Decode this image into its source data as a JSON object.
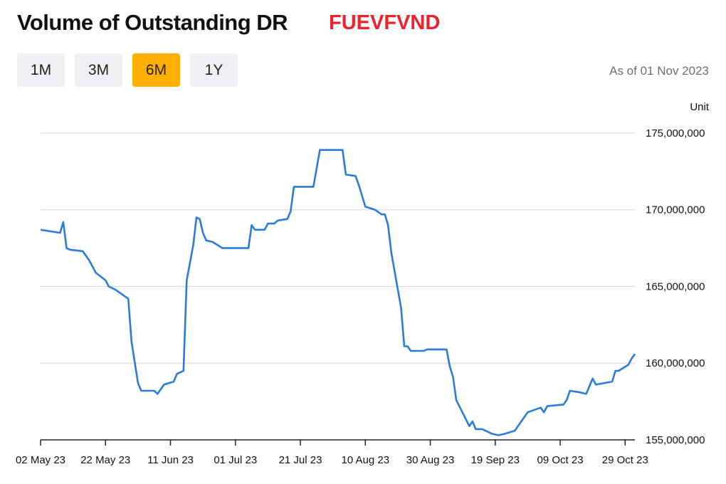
{
  "header": {
    "title": "Volume of Outstanding DR",
    "code": "FUEVFVND",
    "as_of": "As of 01 Nov 2023"
  },
  "buttons": [
    "1M",
    "3M",
    "6M",
    "1Y"
  ],
  "active_button": 2,
  "chart_data": {
    "type": "line",
    "unit": "Unit",
    "color": "#2b7bd8",
    "grid": true,
    "x": [
      "2023-05-02",
      "2023-05-08",
      "2023-05-09",
      "2023-05-10",
      "2023-05-11",
      "2023-05-15",
      "2023-05-17",
      "2023-05-19",
      "2023-05-22",
      "2023-05-23",
      "2023-05-25",
      "2023-05-29",
      "2023-05-30",
      "2023-06-01",
      "2023-06-02",
      "2023-06-06",
      "2023-06-07",
      "2023-06-09",
      "2023-06-12",
      "2023-06-13",
      "2023-06-15",
      "2023-06-16",
      "2023-06-18",
      "2023-06-19",
      "2023-06-20",
      "2023-06-21",
      "2023-06-22",
      "2023-06-24",
      "2023-06-27",
      "2023-07-05",
      "2023-07-06",
      "2023-07-07",
      "2023-07-10",
      "2023-07-11",
      "2023-07-13",
      "2023-07-14",
      "2023-07-17",
      "2023-07-18",
      "2023-07-19",
      "2023-07-25",
      "2023-07-27",
      "2023-08-03",
      "2023-08-04",
      "2023-08-07",
      "2023-08-08",
      "2023-08-10",
      "2023-08-13",
      "2023-08-15",
      "2023-08-16",
      "2023-08-17",
      "2023-08-18",
      "2023-08-21",
      "2023-08-22",
      "2023-08-23",
      "2023-08-24",
      "2023-08-28",
      "2023-08-29",
      "2023-09-04",
      "2023-09-05",
      "2023-09-06",
      "2023-09-07",
      "2023-09-11",
      "2023-09-12",
      "2023-09-13",
      "2023-09-15",
      "2023-09-18",
      "2023-09-20",
      "2023-09-22",
      "2023-09-25",
      "2023-09-27",
      "2023-09-29",
      "2023-10-03",
      "2023-10-04",
      "2023-10-05",
      "2023-10-10",
      "2023-10-11",
      "2023-10-12",
      "2023-10-15",
      "2023-10-17",
      "2023-10-19",
      "2023-10-20",
      "2023-10-25",
      "2023-10-26",
      "2023-10-27",
      "2023-10-30",
      "2023-10-31",
      "2023-11-01"
    ],
    "values": [
      168700000,
      168500000,
      169200000,
      167500000,
      167400000,
      167300000,
      166700000,
      165900000,
      165400000,
      165000000,
      164800000,
      164200000,
      161400000,
      158700000,
      158200000,
      158200000,
      158000000,
      158600000,
      158800000,
      159300000,
      159500000,
      165400000,
      167700000,
      169500000,
      169400000,
      168500000,
      168000000,
      167900000,
      167500000,
      167500000,
      169000000,
      168700000,
      168700000,
      169100000,
      169100000,
      169300000,
      169400000,
      169900000,
      171500000,
      171500000,
      173900000,
      173900000,
      172300000,
      172200000,
      171600000,
      170200000,
      170000000,
      169700000,
      169700000,
      169000000,
      167200000,
      163600000,
      161100000,
      161100000,
      160800000,
      160800000,
      160900000,
      160900000,
      159800000,
      159100000,
      157600000,
      155900000,
      156200000,
      155700000,
      155700000,
      155400000,
      155300000,
      155400000,
      155600000,
      156200000,
      156800000,
      157100000,
      156800000,
      157200000,
      157300000,
      157600000,
      158200000,
      158100000,
      158000000,
      159000000,
      158600000,
      158800000,
      159500000,
      159500000,
      159900000,
      160300000,
      160600000
    ],
    "xlim": [
      "2023-05-02",
      "2023-11-01"
    ],
    "xticks": [
      {
        "value": "2023-05-02",
        "label": "02 May 23"
      },
      {
        "value": "2023-05-22",
        "label": "22 May 23"
      },
      {
        "value": "2023-06-11",
        "label": "11 Jun 23"
      },
      {
        "value": "2023-07-01",
        "label": "01 Jul 23"
      },
      {
        "value": "2023-07-21",
        "label": "21 Jul 23"
      },
      {
        "value": "2023-08-10",
        "label": "10 Aug 23"
      },
      {
        "value": "2023-08-30",
        "label": "30 Aug 23"
      },
      {
        "value": "2023-09-19",
        "label": "19 Sep 23"
      },
      {
        "value": "2023-10-09",
        "label": "09 Oct 23"
      },
      {
        "value": "2023-10-29",
        "label": "29 Oct 23"
      }
    ],
    "ylim": [
      155000000,
      175000000
    ],
    "yticks": [
      {
        "value": 155000000,
        "label": "155,000,000"
      },
      {
        "value": 160000000,
        "label": "160,000,000"
      },
      {
        "value": 165000000,
        "label": "165,000,000"
      },
      {
        "value": 170000000,
        "label": "170,000,000"
      },
      {
        "value": 175000000,
        "label": "175,000,000"
      }
    ]
  }
}
